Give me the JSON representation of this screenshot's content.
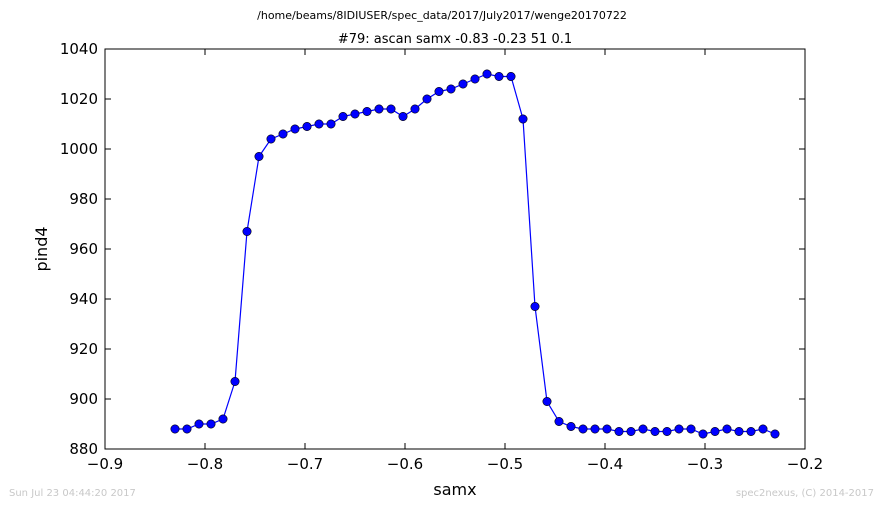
{
  "chart_data": {
    "type": "line",
    "suptitle": "/home/beams/8IDIUSER/spec_data/2017/July2017/wenge20170722",
    "title": "#79: ascan  samx -0.83 -0.23  51 0.1",
    "xlabel": "samx",
    "ylabel": "pind4",
    "xlim": [
      -0.9,
      -0.2
    ],
    "ylim": [
      880,
      1040
    ],
    "xticks": [
      -0.9,
      -0.8,
      -0.7,
      -0.6,
      -0.5,
      -0.4,
      -0.3,
      -0.2
    ],
    "xtick_labels": [
      "−0.9",
      "−0.8",
      "−0.7",
      "−0.6",
      "−0.5",
      "−0.4",
      "−0.3",
      "−0.2"
    ],
    "yticks": [
      880,
      900,
      920,
      940,
      960,
      980,
      1000,
      1020,
      1040
    ],
    "ytick_labels": [
      "880",
      "900",
      "920",
      "940",
      "960",
      "980",
      "1000",
      "1020",
      "1040"
    ],
    "grid": false,
    "color": "#0000ff",
    "marker": "circle",
    "x": [
      -0.83,
      -0.818,
      -0.806,
      -0.794,
      -0.782,
      -0.77,
      -0.758,
      -0.746,
      -0.734,
      -0.722,
      -0.71,
      -0.698,
      -0.686,
      -0.674,
      -0.662,
      -0.65,
      -0.638,
      -0.626,
      -0.614,
      -0.602,
      -0.59,
      -0.578,
      -0.566,
      -0.554,
      -0.542,
      -0.53,
      -0.518,
      -0.506,
      -0.494,
      -0.482,
      -0.47,
      -0.458,
      -0.446,
      -0.434,
      -0.422,
      -0.41,
      -0.398,
      -0.386,
      -0.374,
      -0.362,
      -0.35,
      -0.338,
      -0.326,
      -0.314,
      -0.302,
      -0.29,
      -0.278,
      -0.266,
      -0.254,
      -0.242,
      -0.23
    ],
    "y": [
      888,
      888,
      890,
      890,
      892,
      907,
      967,
      997,
      1004,
      1006,
      1008,
      1009,
      1010,
      1010,
      1013,
      1014,
      1015,
      1016,
      1016,
      1013,
      1016,
      1020,
      1023,
      1024,
      1026,
      1028,
      1030,
      1029,
      1029,
      1012,
      937,
      899,
      891,
      889,
      888,
      888,
      888,
      887,
      887,
      888,
      887,
      887,
      888,
      888,
      886,
      887,
      888,
      887,
      887,
      888,
      886
    ]
  },
  "footer": {
    "timestamp": "Sun Jul 23 04:44:20 2017",
    "credit": "spec2nexus, (C) 2014-2017"
  }
}
